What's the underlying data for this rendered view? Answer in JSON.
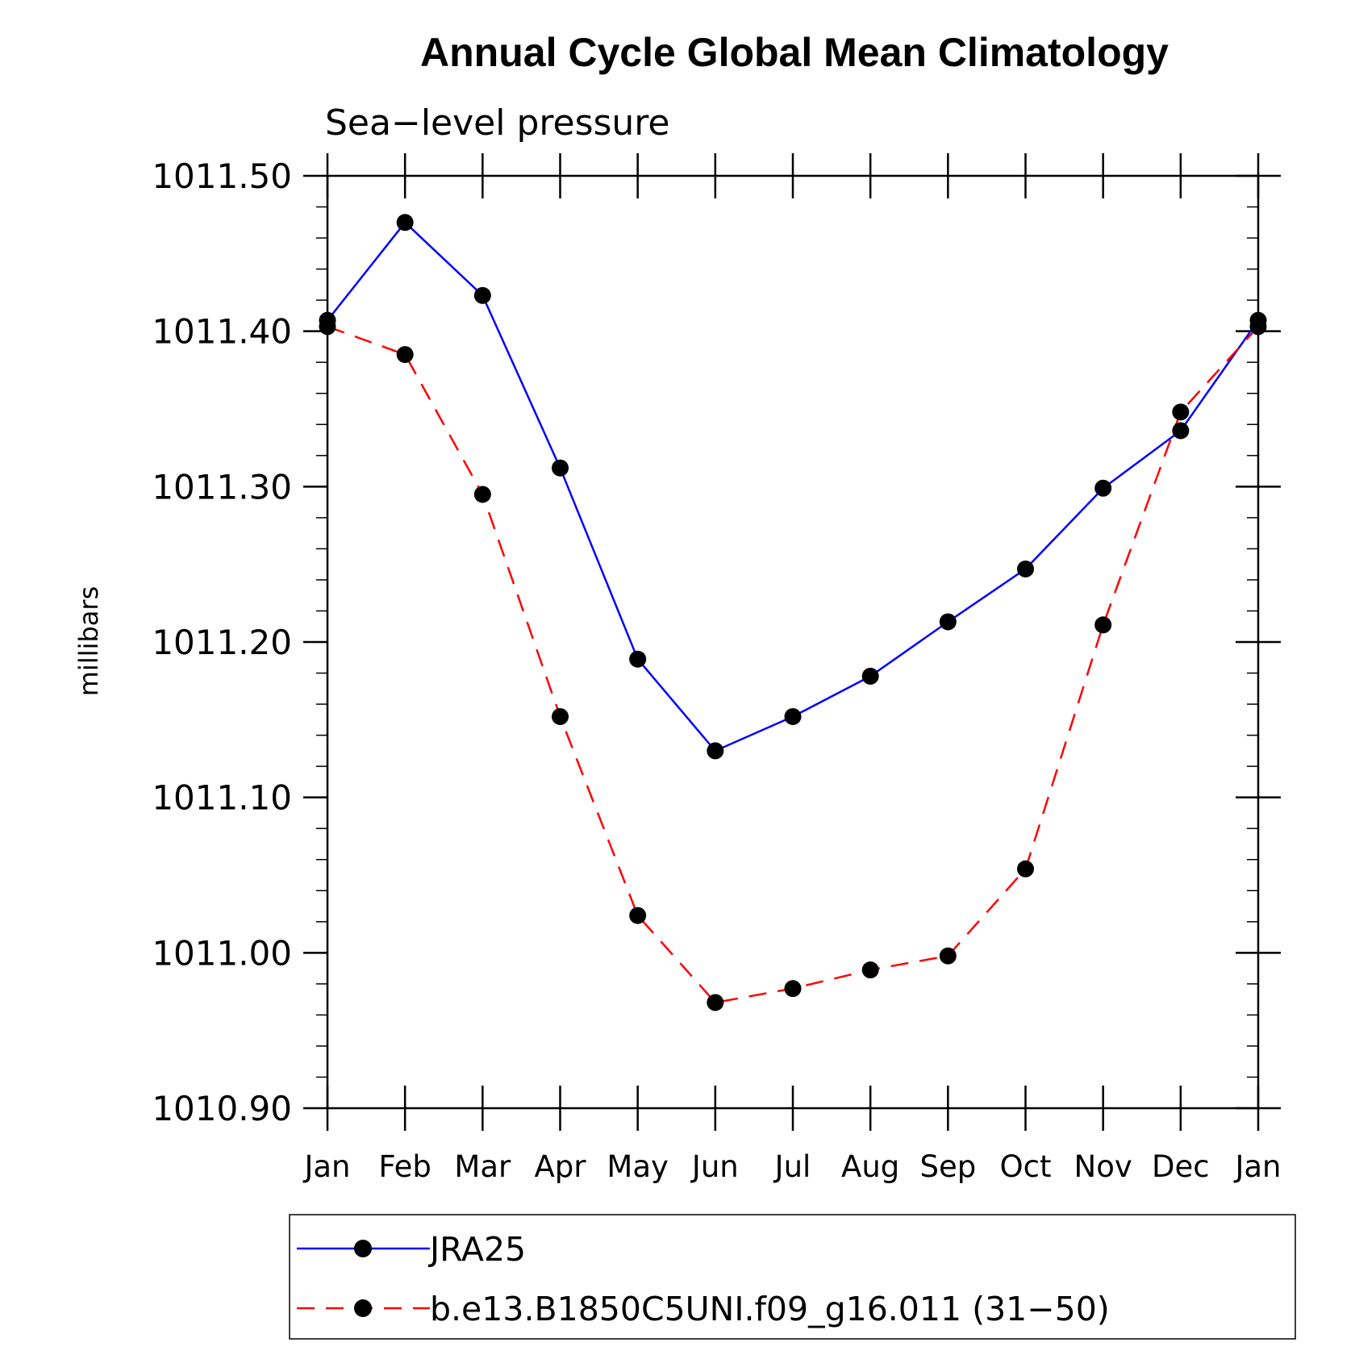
{
  "chart_data": {
    "type": "line",
    "title": "Annual Cycle Global Mean Climatology",
    "subtitle": "Sea−level pressure",
    "ylabel": "millibars",
    "xlabel": "",
    "ylim": [
      1010.9,
      1011.5
    ],
    "yticks": [
      "1010.90",
      "1011.00",
      "1011.10",
      "1011.20",
      "1011.30",
      "1011.40",
      "1011.50"
    ],
    "categories": [
      "Jan",
      "Feb",
      "Mar",
      "Apr",
      "May",
      "Jun",
      "Jul",
      "Aug",
      "Sep",
      "Oct",
      "Nov",
      "Dec",
      "Jan"
    ],
    "grid": false,
    "legend_position": "bottom",
    "series": [
      {
        "name": "JRA25",
        "color": "#0000ff",
        "dash": "solid",
        "values": [
          1011.407,
          1011.47,
          1011.423,
          1011.312,
          1011.189,
          1011.13,
          1011.152,
          1011.178,
          1011.213,
          1011.247,
          1011.299,
          1011.336,
          1011.407
        ]
      },
      {
        "name": "b.e13.B1850C5UNI.f09_g16.011 (31−50)",
        "color": "#ff0000",
        "dash": "dashed",
        "values": [
          1011.403,
          1011.385,
          1011.295,
          1011.152,
          1011.024,
          1010.968,
          1010.977,
          1010.989,
          1010.998,
          1011.054,
          1011.211,
          1011.348,
          1011.403
        ]
      }
    ]
  }
}
